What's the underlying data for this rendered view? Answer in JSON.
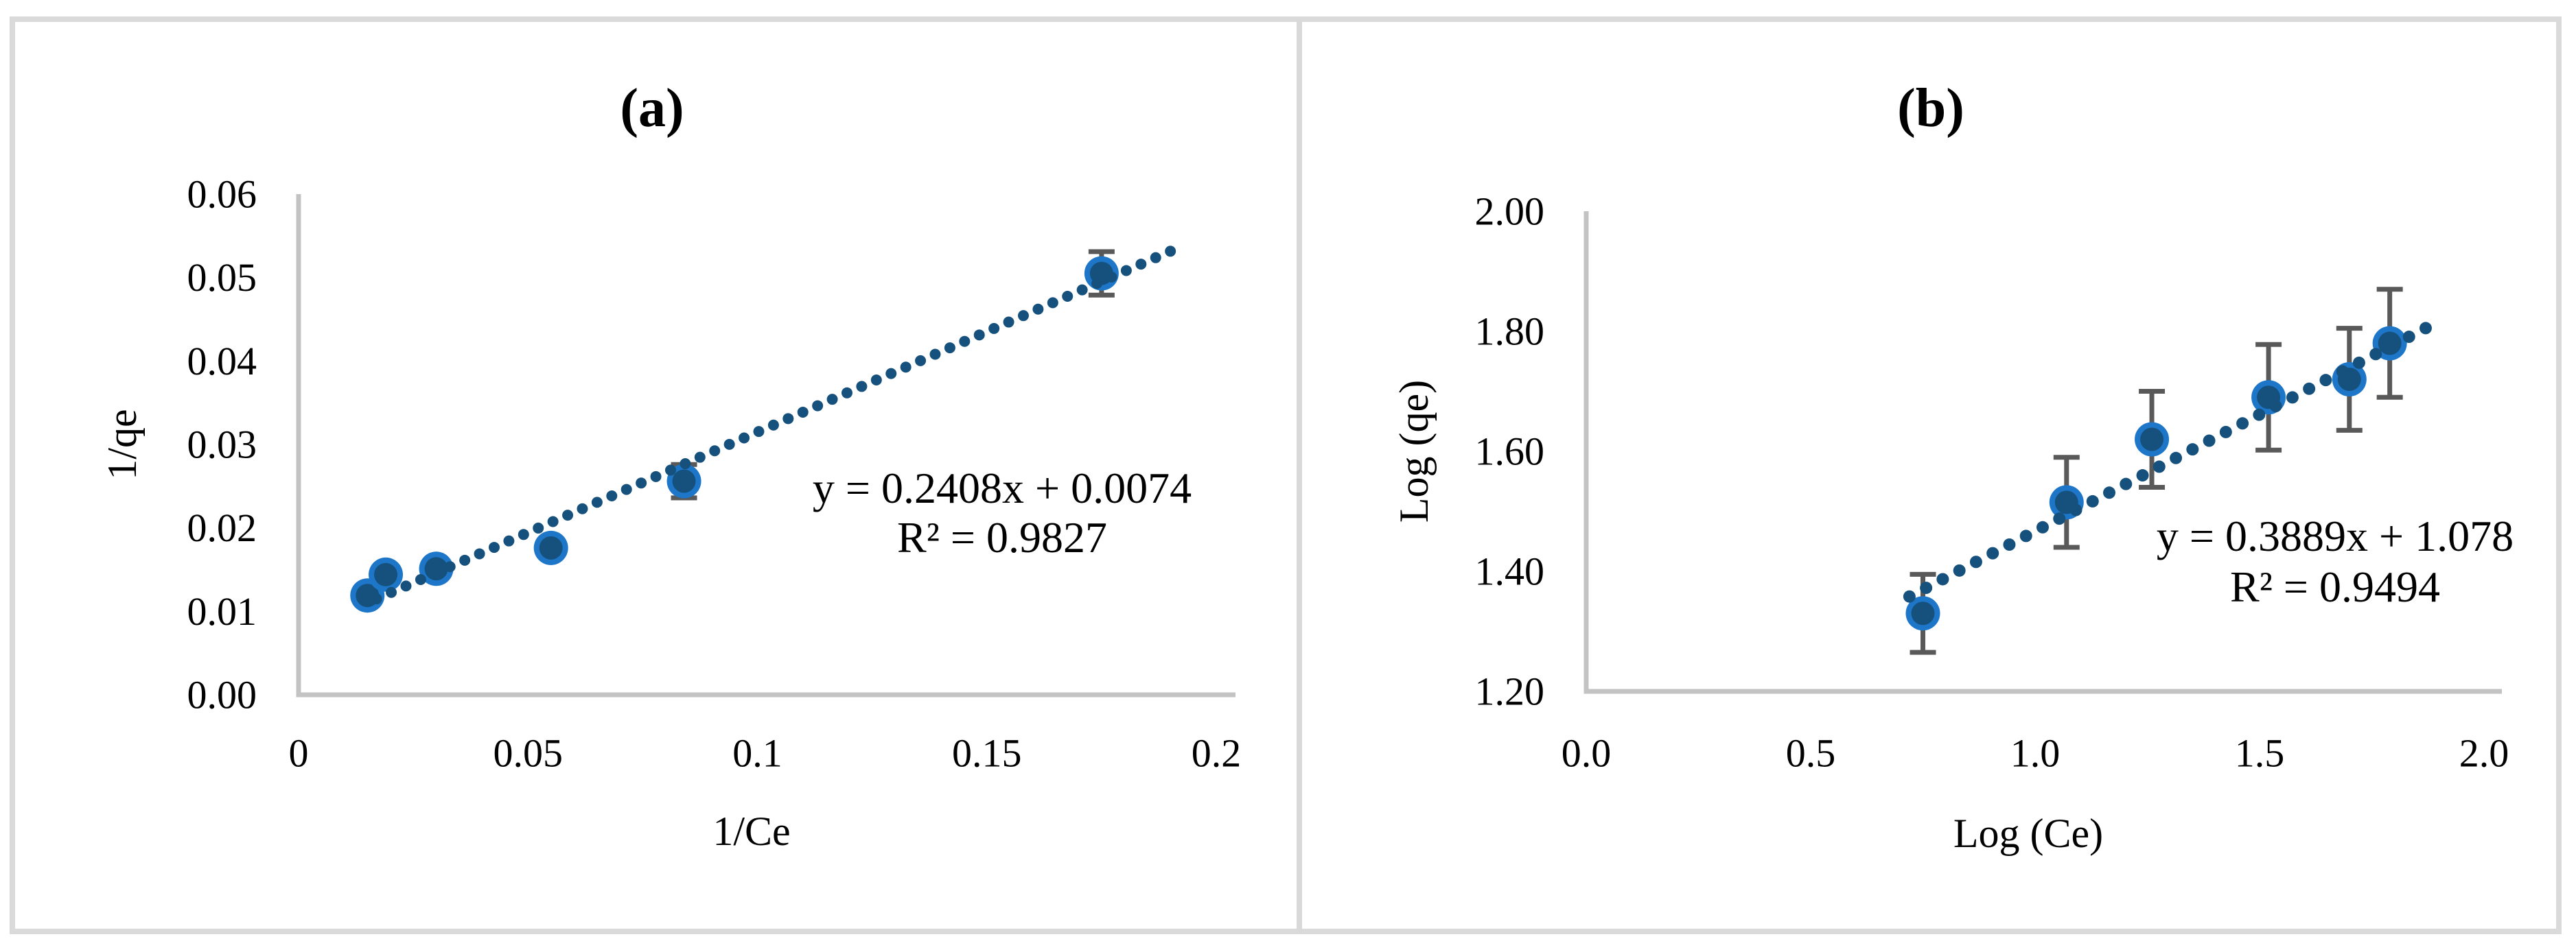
{
  "figure": {
    "background": "#FFFFFF",
    "border_color": "#DADADA",
    "divider_color": "#D9D9D9"
  },
  "colors": {
    "marker_core": "#15517C",
    "marker_ring": "#1E76C8",
    "trendline_dot": "#15517C",
    "error_bar": "#595959",
    "axis_line": "#C3C3C3",
    "text": "#000000"
  },
  "chart_data": [
    {
      "id": "a",
      "type": "scatter",
      "panel_label": "(a)",
      "xlabel": "1/Ce",
      "ylabel": "1/qe",
      "xlim": [
        0,
        0.2
      ],
      "ylim": [
        0,
        0.06
      ],
      "grid": false,
      "legend": "none",
      "x_ticks": [
        {
          "value": 0,
          "label": "0"
        },
        {
          "value": 0.05,
          "label": "0.05"
        },
        {
          "value": 0.1,
          "label": "0.1"
        },
        {
          "value": 0.15,
          "label": "0.15"
        },
        {
          "value": 0.2,
          "label": "0.2"
        }
      ],
      "y_ticks": [
        {
          "value": 0.0,
          "label": "0.00"
        },
        {
          "value": 0.01,
          "label": "0.01"
        },
        {
          "value": 0.02,
          "label": "0.02"
        },
        {
          "value": 0.03,
          "label": "0.03"
        },
        {
          "value": 0.04,
          "label": "0.04"
        },
        {
          "value": 0.05,
          "label": "0.05"
        },
        {
          "value": 0.06,
          "label": "0.06"
        }
      ],
      "points": [
        {
          "x": 0.015,
          "y": 0.0119,
          "err": 0.001
        },
        {
          "x": 0.019,
          "y": 0.0144,
          "err": 0.001
        },
        {
          "x": 0.03,
          "y": 0.0151,
          "err": 0.001
        },
        {
          "x": 0.055,
          "y": 0.0176,
          "err": 0.001
        },
        {
          "x": 0.084,
          "y": 0.0256,
          "err": 0.002
        },
        {
          "x": 0.175,
          "y": 0.0505,
          "err": 0.0026
        }
      ],
      "trendline": {
        "style": "dotted",
        "slope": 0.2408,
        "intercept": 0.0074,
        "x_start": 0.017,
        "x_end": 0.19
      },
      "equation": {
        "line1": "y = 0.2408x + 0.0074",
        "line2": "R² = 0.9827"
      }
    },
    {
      "id": "b",
      "type": "scatter",
      "panel_label": "(b)",
      "xlabel": "Log (Ce)",
      "ylabel": "Log (qe)",
      "xlim": [
        0.0,
        2.0
      ],
      "ylim": [
        1.2,
        2.0
      ],
      "grid": false,
      "legend": "none",
      "x_ticks": [
        {
          "value": 0.0,
          "label": "0.0"
        },
        {
          "value": 0.5,
          "label": "0.5"
        },
        {
          "value": 1.0,
          "label": "1.0"
        },
        {
          "value": 1.5,
          "label": "1.5"
        },
        {
          "value": 2.0,
          "label": "2.0"
        }
      ],
      "y_ticks": [
        {
          "value": 1.2,
          "label": "1.20"
        },
        {
          "value": 1.4,
          "label": "1.40"
        },
        {
          "value": 1.6,
          "label": "1.60"
        },
        {
          "value": 1.8,
          "label": "1.80"
        },
        {
          "value": 2.0,
          "label": "2.00"
        }
      ],
      "points": [
        {
          "x": 0.75,
          "y": 1.33,
          "err": 0.065
        },
        {
          "x": 1.07,
          "y": 1.515,
          "err": 0.075
        },
        {
          "x": 1.26,
          "y": 1.62,
          "err": 0.08
        },
        {
          "x": 1.52,
          "y": 1.69,
          "err": 0.088
        },
        {
          "x": 1.7,
          "y": 1.72,
          "err": 0.085
        },
        {
          "x": 1.79,
          "y": 1.78,
          "err": 0.09
        }
      ],
      "trendline": {
        "style": "dotted",
        "slope": 0.3889,
        "intercept": 1.078,
        "x_start": 0.72,
        "x_end": 1.87
      },
      "equation": {
        "line1": "y = 0.3889x + 1.078",
        "line2": "R² = 0.9494"
      }
    }
  ]
}
